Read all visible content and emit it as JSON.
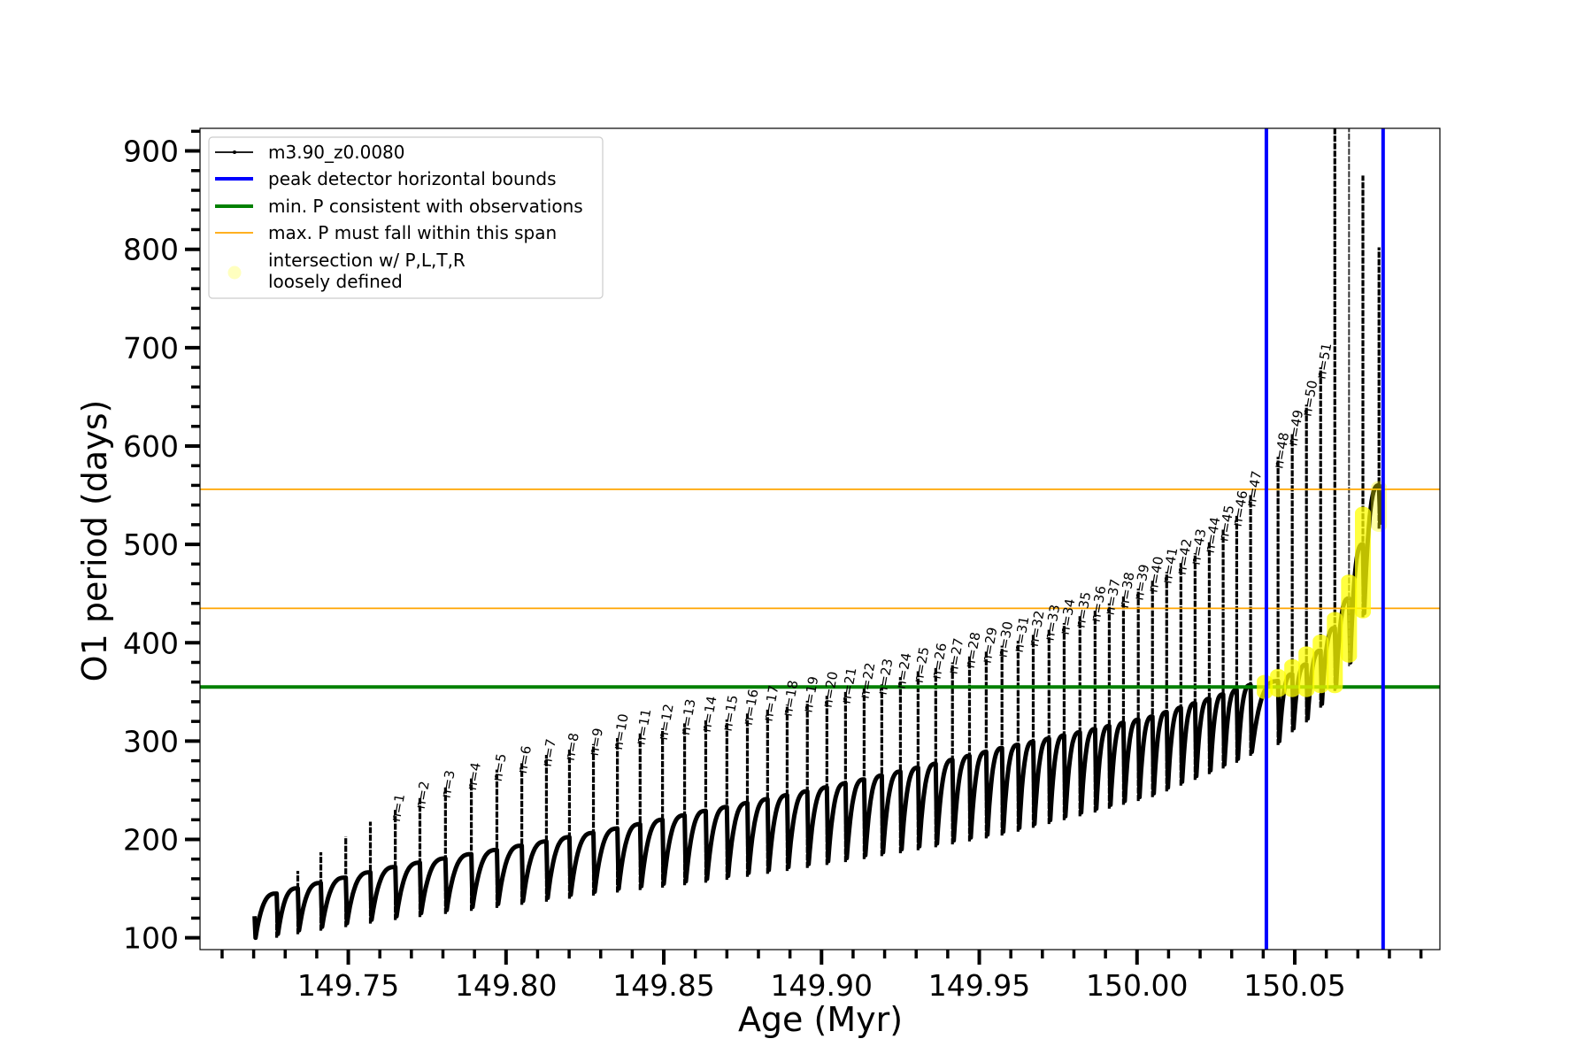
{
  "chart_data": {
    "type": "line",
    "title": "",
    "xlabel": "Age (Myr)",
    "ylabel": "O1 period (days)",
    "xlim": [
      149.703,
      150.096
    ],
    "ylim": [
      88,
      923
    ],
    "xticks": [
      149.75,
      149.8,
      149.85,
      149.9,
      149.95,
      150.0,
      150.05
    ],
    "xtick_labels": [
      "149.75",
      "149.80",
      "149.85",
      "149.90",
      "149.95",
      "150.00",
      "150.05"
    ],
    "x_minor_step": 0.01,
    "x_tick_range": [
      149.71,
      150.09
    ],
    "yticks": [
      100,
      200,
      300,
      400,
      500,
      600,
      700,
      800,
      900
    ],
    "ytick_labels": [
      "100",
      "200",
      "300",
      "400",
      "500",
      "600",
      "700",
      "800",
      "900"
    ],
    "y_minor_step": 20,
    "grid": false,
    "legend_position": "top-left",
    "legend": [
      {
        "label": "m3.90_z0.0080",
        "color": "#000000",
        "kind": "line-marker"
      },
      {
        "label": "peak detector horizontal bounds",
        "color": "#0000ff",
        "kind": "line"
      },
      {
        "label": "min. P consistent with observations",
        "color": "#008000",
        "kind": "line"
      },
      {
        "label": "max. P must fall within this span",
        "color": "#ffa500",
        "kind": "thin-line"
      },
      {
        "label": "intersection w/ P,L,T,R",
        "label2": "loosely defined",
        "color": "#ffff00",
        "kind": "marker"
      }
    ],
    "series": {
      "name": "m3.90_z0.0080",
      "color": "#000000",
      "start": {
        "age": 149.7203,
        "value": 122,
        "min": 100
      },
      "pulses": {
        "labels": [
          "",
          "",
          "",
          "",
          "",
          "n=1",
          "n=2",
          "n=3",
          "n=4",
          "n=5",
          "n=6",
          "n=7",
          "n=8",
          "n=9",
          "n=10",
          "n=11",
          "n=12",
          "n=13",
          "n=14",
          "n=15",
          "n=16",
          "n=17",
          "n=18",
          "n=19",
          "n=20",
          "n=21",
          "n=22",
          "n=23",
          "n=24",
          "n=25",
          "n=26",
          "n=27",
          "n=28",
          "n=29",
          "n=30",
          "n=31",
          "n=32",
          "n=33",
          "n=34",
          "n=35",
          "n=36",
          "n=37",
          "n=38",
          "n=39",
          "n=40",
          "n=41",
          "n=42",
          "n=43",
          "n=44",
          "n=45",
          "n=46",
          "n=47",
          "n=48",
          "n=49",
          "n=50",
          "n=51",
          "",
          "",
          "",
          ""
        ],
        "age": [
          149.7273,
          149.734,
          149.7413,
          149.7492,
          149.757,
          149.7649,
          149.7727,
          149.7808,
          149.789,
          149.7971,
          149.805,
          149.8128,
          149.8201,
          149.8277,
          149.8353,
          149.8425,
          149.8496,
          149.8566,
          149.8633,
          149.87,
          149.8765,
          149.8829,
          149.8891,
          149.8955,
          149.9017,
          149.9076,
          149.9135,
          149.9191,
          149.925,
          149.9306,
          149.9362,
          149.9415,
          149.9469,
          149.9522,
          149.9572,
          149.9623,
          149.9671,
          149.9721,
          149.9769,
          149.9819,
          149.9867,
          149.9912,
          149.9957,
          150.0004,
          150.0049,
          150.0094,
          150.0139,
          150.0184,
          150.0229,
          150.0273,
          150.0316,
          150.036,
          150.0447,
          150.0492,
          150.0537,
          150.0582,
          150.0627,
          150.0672,
          150.0716,
          150.0767
        ],
        "peak": [
          147,
          168,
          187,
          203,
          218,
          230,
          243,
          254,
          262,
          271,
          279,
          286,
          292,
          297,
          303,
          308,
          313,
          318,
          321,
          322,
          328,
          332,
          337,
          341,
          346,
          350,
          355,
          359,
          365,
          371,
          375,
          380,
          386,
          391,
          397,
          402,
          408,
          414,
          420,
          427,
          433,
          440,
          447,
          455,
          463,
          472,
          481,
          491,
          503,
          515,
          530,
          550,
          589,
          612,
          642,
          680,
          1000,
          1000,
          875,
          802
        ]
      },
      "top_anchors": {
        "index": [
          0,
          5,
          14,
          18,
          34,
          44,
          50,
          51,
          52,
          53,
          54,
          55,
          56,
          57,
          58,
          59
        ],
        "value": [
          145,
          172,
          211,
          229,
          293,
          325,
          352,
          357,
          361,
          368,
          378,
          392,
          415,
          445,
          500,
          560
        ]
      },
      "trough_anchors": {
        "index": [
          0,
          5,
          14,
          18,
          34,
          44,
          50,
          51,
          52,
          53,
          54,
          55,
          56,
          57,
          58,
          59
        ],
        "value": [
          104,
          122,
          150,
          160,
          208,
          247,
          282,
          289,
          300,
          313,
          323,
          338,
          355,
          380,
          430,
          520
        ]
      }
    },
    "vlines": {
      "label": "peak detector horizontal bounds",
      "color": "#0000ff",
      "x": [
        150.041,
        150.078
      ]
    },
    "hline_min": {
      "label": "min. P consistent with observations",
      "color": "#008000",
      "y": 355
    },
    "hlines_max": {
      "label": "max. P must fall within this span",
      "color": "#ffa500",
      "y": [
        435,
        556
      ]
    },
    "intersection": {
      "color": "#ffff00",
      "spans": [
        {
          "age": 150.0405,
          "min": 349,
          "max": 361
        },
        {
          "age": 150.0447,
          "min": 351,
          "max": 367
        },
        {
          "age": 150.0492,
          "min": 351,
          "max": 377
        },
        {
          "age": 150.0537,
          "min": 351,
          "max": 390
        },
        {
          "age": 150.0582,
          "min": 355,
          "max": 402
        },
        {
          "age": 150.0627,
          "min": 355,
          "max": 425
        },
        {
          "age": 150.0672,
          "min": 386,
          "max": 463
        },
        {
          "age": 150.0716,
          "min": 431,
          "max": 532
        },
        {
          "age": 150.0767,
          "min": 519,
          "max": 558
        }
      ]
    }
  }
}
